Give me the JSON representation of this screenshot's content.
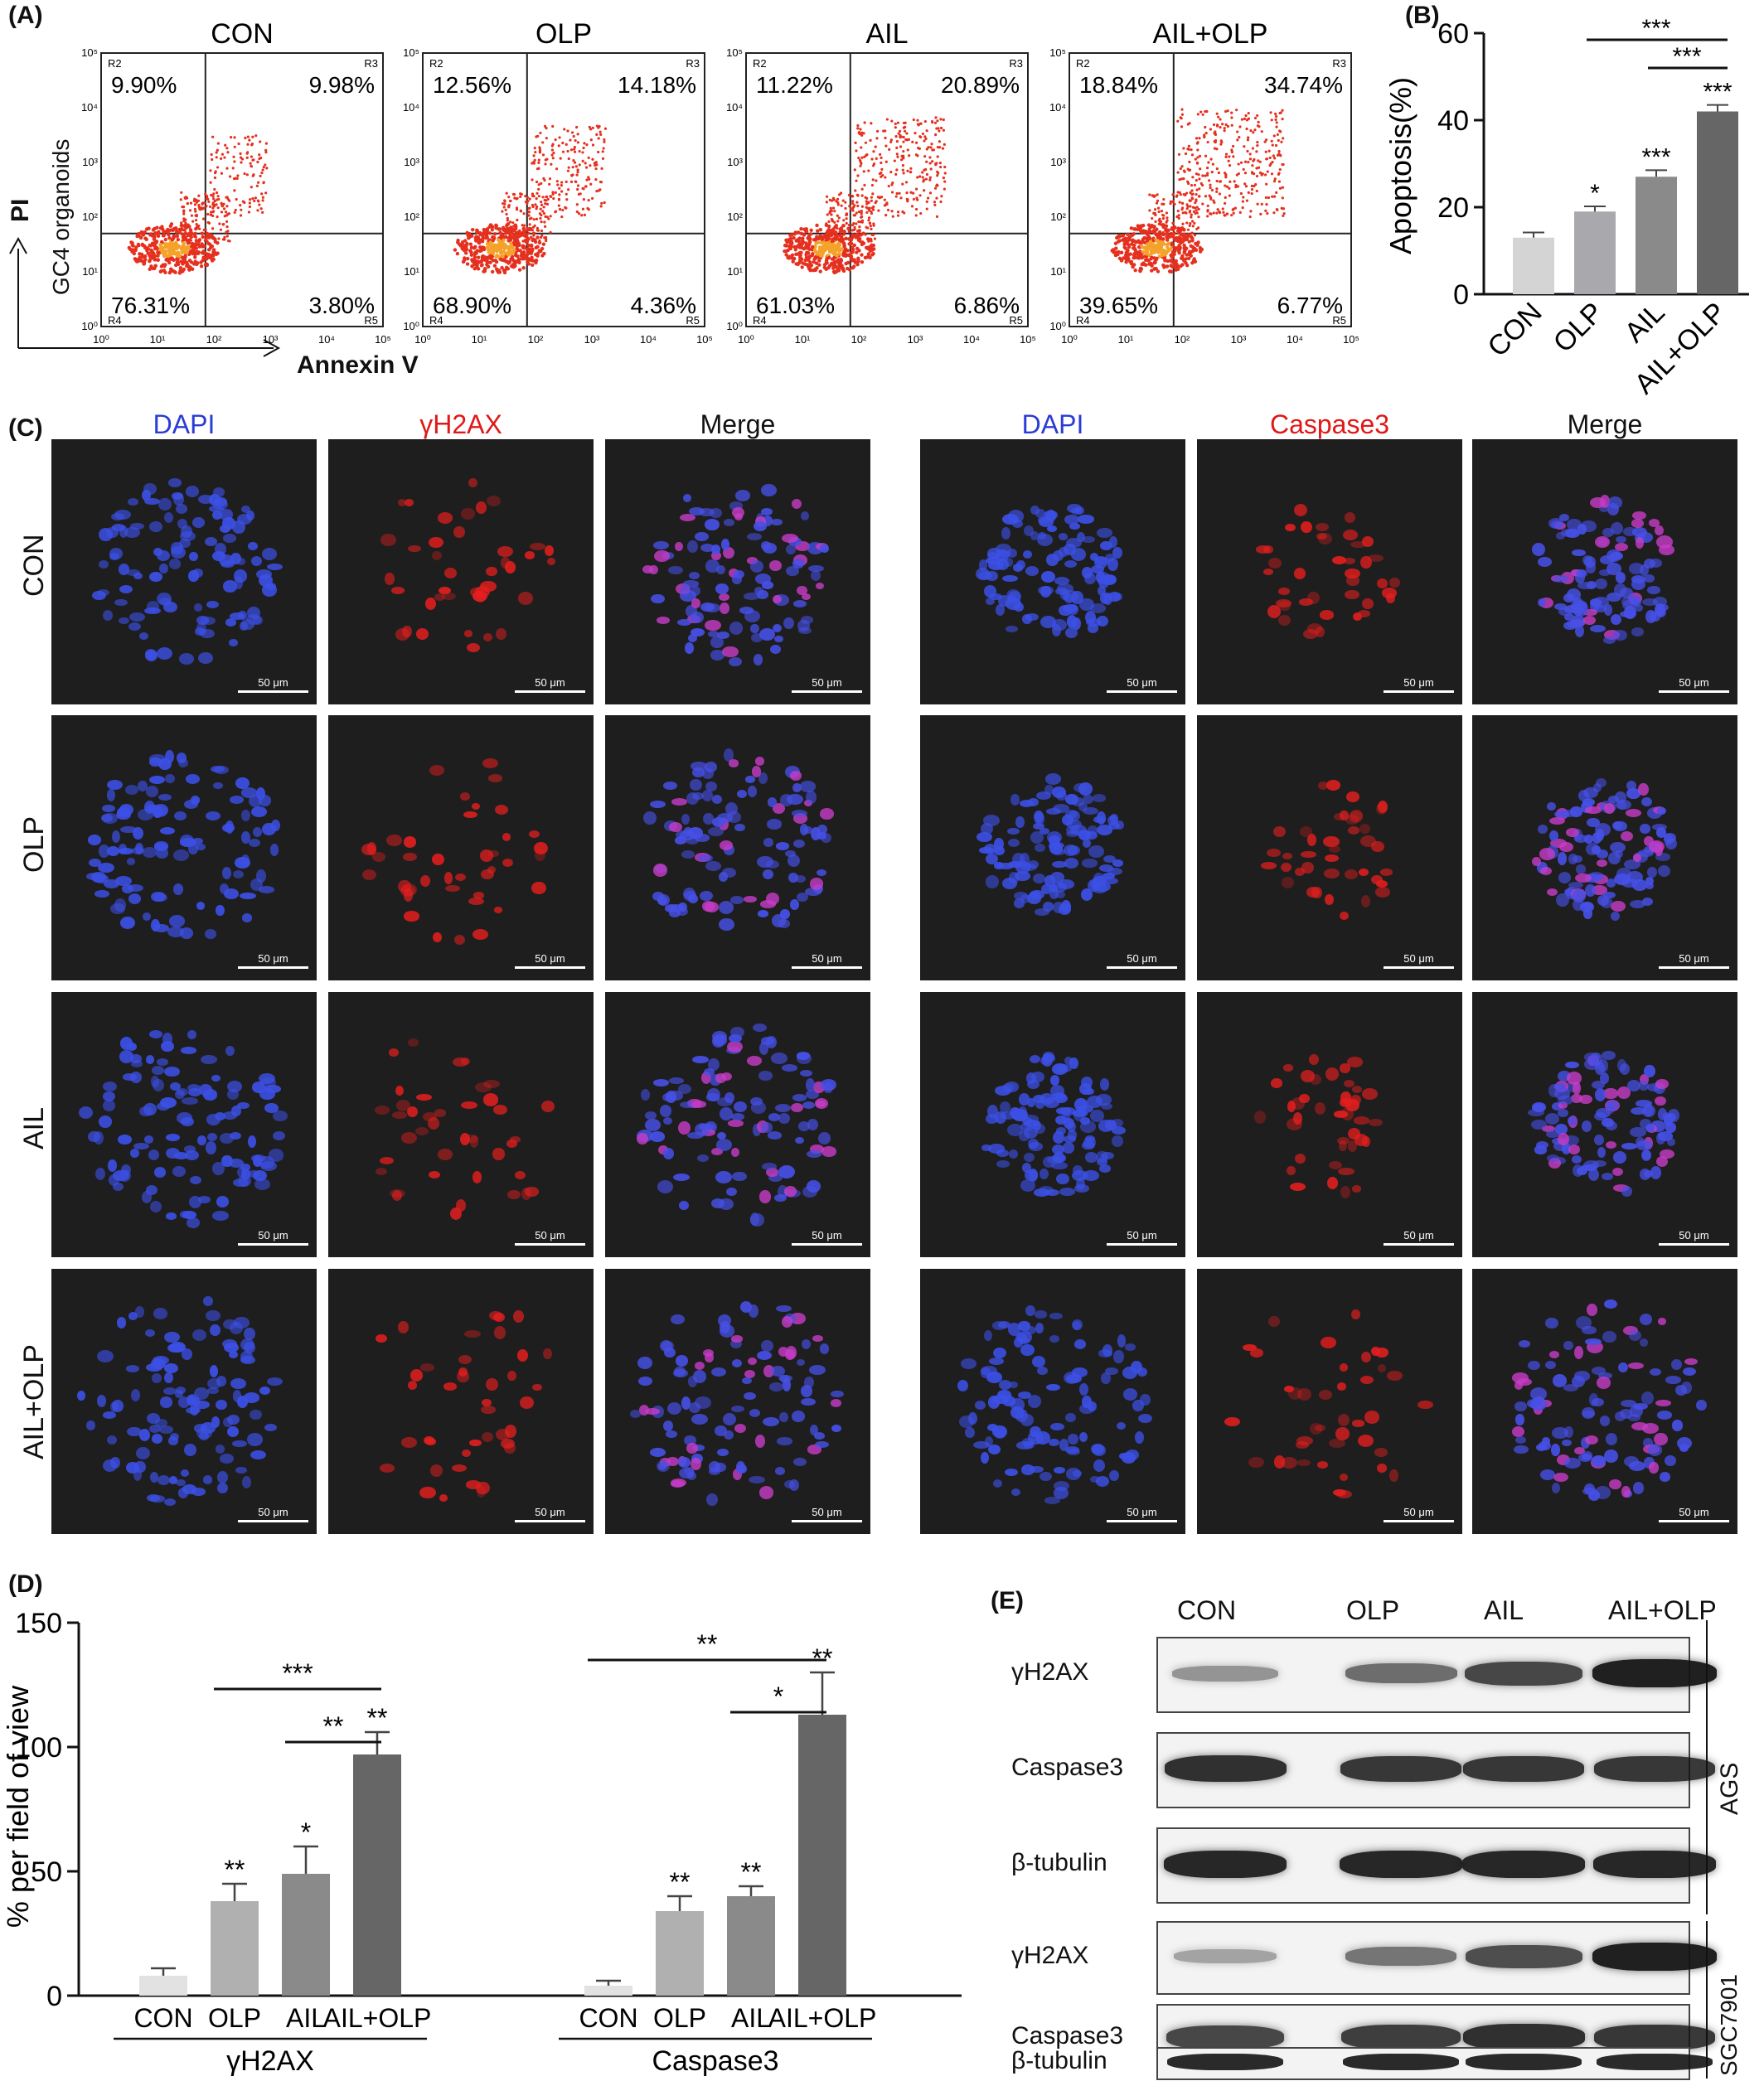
{
  "panel_labels": {
    "A": "(A)",
    "B": "(B)",
    "C": "(C)",
    "D": "(D)",
    "E": "(E)"
  },
  "panelA": {
    "y_axis_label_arrow": "PI",
    "y_axis_label_cells": "GC4 organoids",
    "x_axis_label": "Annexin V",
    "tick_labels": [
      "10⁰",
      "10¹",
      "10²",
      "10³",
      "10⁴",
      "10⁵"
    ],
    "region_labels": {
      "R2": "R2",
      "R3": "R3",
      "R4": "R4",
      "R5": "R5"
    },
    "plots": [
      {
        "title": "CON",
        "q_ul": "9.90%",
        "q_ur": "9.98%",
        "q_ll": "76.31%",
        "q_lr": "3.80%"
      },
      {
        "title": "OLP",
        "q_ul": "12.56%",
        "q_ur": "14.18%",
        "q_ll": "68.90%",
        "q_lr": "4.36%"
      },
      {
        "title": "AIL",
        "q_ul": "11.22%",
        "q_ur": "20.89%",
        "q_ll": "61.03%",
        "q_lr": "6.86%"
      },
      {
        "title": "AIL+OLP",
        "q_ul": "18.84%",
        "q_ur": "34.74%",
        "q_ll": "39.65%",
        "q_lr": "6.77%"
      }
    ]
  },
  "panelC": {
    "left_headers": [
      "DAPI",
      "γH2AX",
      "Merge"
    ],
    "right_headers": [
      "DAPI",
      "Caspase3",
      "Merge"
    ],
    "row_labels": [
      "CON",
      "OLP",
      "AIL",
      "AIL+OLP"
    ],
    "scale_bar": "50 μm",
    "colors": {
      "dapi": "#2b3bd6",
      "stain": "#e01818",
      "background": "#1e1e1e"
    }
  },
  "panelE": {
    "lanes": [
      "CON",
      "OLP",
      "AIL",
      "AIL+OLP"
    ],
    "proteins_top": [
      "γH2AX",
      "Caspase3",
      "β-tubulin"
    ],
    "proteins_bottom": [
      "γH2AX",
      "Caspase3",
      "β-tubulin"
    ],
    "cell_lines": [
      "AGS",
      "SGC7901"
    ]
  },
  "chart_data": [
    {
      "type": "bar",
      "panel": "B",
      "categories": [
        "CON",
        "OLP",
        "AIL",
        "AIL+OLP"
      ],
      "values": [
        13,
        19,
        27,
        42
      ],
      "errors": [
        1.2,
        1.2,
        1.5,
        1.5
      ],
      "sig_above": [
        "",
        "*",
        "***",
        "***"
      ],
      "brackets": [
        {
          "from": 1,
          "to": 3,
          "label": "***"
        },
        {
          "from": 2,
          "to": 3,
          "label": "***"
        }
      ],
      "ylabel": "Apoptosis(%)",
      "ylim": [
        0,
        60
      ],
      "yticks": [
        0,
        20,
        40,
        60
      ],
      "colors": [
        "#d4d4d4",
        "#a9a9ad",
        "#8a8a8a",
        "#666666"
      ]
    },
    {
      "type": "bar",
      "panel": "D",
      "ylabel": "% per field of view",
      "ylim": [
        0,
        150
      ],
      "yticks": [
        0,
        50,
        100,
        150
      ],
      "groups": [
        {
          "name": "γH2AX",
          "categories": [
            "CON",
            "OLP",
            "AIL",
            "AIL+OLP"
          ],
          "values": [
            8,
            38,
            49,
            97
          ],
          "errors": [
            3,
            7,
            11,
            9
          ],
          "sig_above": [
            "",
            "**",
            "*",
            "**"
          ],
          "brackets": [
            {
              "from": 1,
              "to": 3,
              "label": "***"
            },
            {
              "from": 2,
              "to": 3,
              "label": "**"
            }
          ]
        },
        {
          "name": "Caspase3",
          "categories": [
            "CON",
            "OLP",
            "AIL",
            "AIL+OLP"
          ],
          "values": [
            4,
            34,
            40,
            113
          ],
          "errors": [
            2,
            6,
            4,
            17
          ],
          "sig_above": [
            "",
            "**",
            "**",
            "**"
          ],
          "brackets": [
            {
              "from": 0,
              "to": 3,
              "label": "**"
            },
            {
              "from": 2,
              "to": 3,
              "label": "*"
            }
          ]
        }
      ],
      "colors": [
        "#e2e2e2",
        "#b0b0b0",
        "#8a8a8a",
        "#666666"
      ]
    }
  ]
}
